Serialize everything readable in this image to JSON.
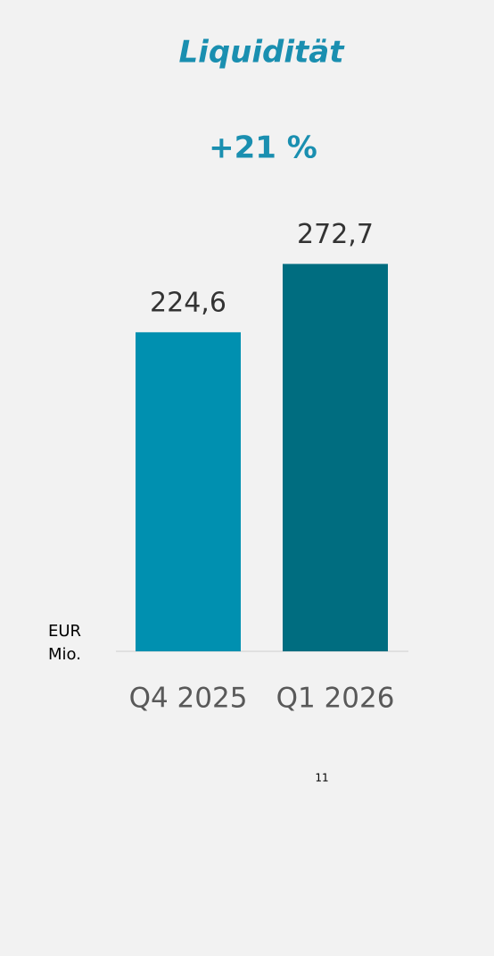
{
  "chart_data": {
    "type": "bar",
    "title": "Liquidität",
    "annotation": "+21 %",
    "categories": [
      "Q4 2025",
      "Q1 2026"
    ],
    "values": [
      224.6,
      272.7
    ],
    "value_labels": [
      "224,6",
      "272,7"
    ],
    "colors": [
      "#0090b0",
      "#006d80"
    ],
    "unit_label": "EUR Mio.",
    "page_number": "11"
  }
}
